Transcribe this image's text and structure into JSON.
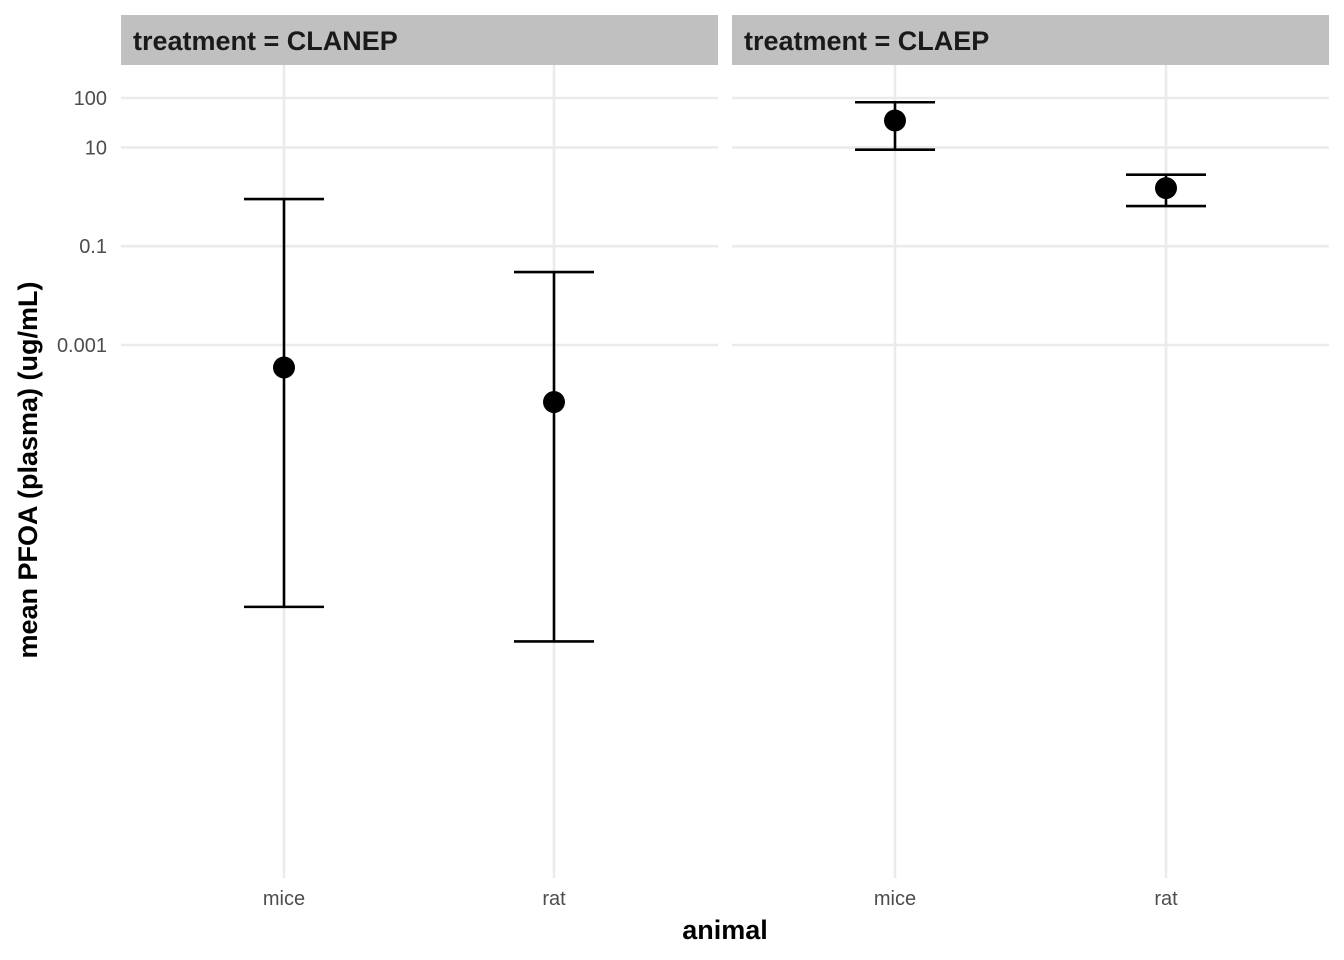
{
  "chart_data": {
    "type": "scatter",
    "subtype": "point with error bars, faceted",
    "xlabel": "animal",
    "ylabel": "mean PFOA (plasma) (ug/mL)",
    "y_scale": "log10",
    "y_ticks": [
      {
        "value": 100,
        "label": "100"
      },
      {
        "value": 10,
        "label": "10"
      },
      {
        "value": 0.1,
        "label": "0.1"
      },
      {
        "value": 0.001,
        "label": "0.001"
      }
    ],
    "categories": [
      "mice",
      "rat"
    ],
    "facets": [
      {
        "title": "treatment = CLANEP",
        "points": [
          {
            "category": "mice",
            "mean": 0.00035,
            "lower": 5e-09,
            "upper": 0.9
          },
          {
            "category": "rat",
            "mean": 7e-05,
            "lower": 1e-09,
            "upper": 0.03
          }
        ]
      },
      {
        "title": "treatment = CLAEP",
        "points": [
          {
            "category": "mice",
            "mean": 35,
            "lower": 9,
            "upper": 82
          },
          {
            "category": "rat",
            "mean": 1.5,
            "lower": 0.65,
            "upper": 2.8
          }
        ]
      }
    ]
  }
}
